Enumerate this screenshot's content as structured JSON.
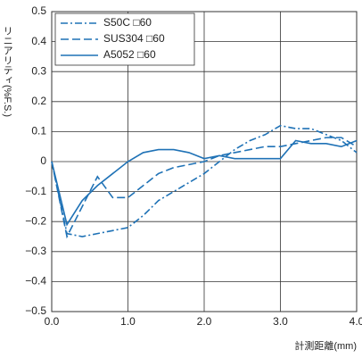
{
  "chart_data": {
    "type": "line",
    "y_label": "リニアリティ(%F.S.)",
    "x_label": "計測距離(mm)",
    "x": [
      0,
      0.2,
      0.4,
      0.6,
      0.8,
      1.0,
      1.2,
      1.4,
      1.6,
      1.8,
      2.0,
      2.2,
      2.4,
      2.6,
      2.8,
      3.0,
      3.2,
      3.4,
      3.6,
      3.8,
      4.0
    ],
    "series": [
      {
        "name": "S50C □60",
        "color": "#1f72b6",
        "dash": "dashdot",
        "values": [
          0,
          -0.24,
          -0.25,
          -0.24,
          -0.23,
          -0.22,
          -0.18,
          -0.13,
          -0.1,
          -0.07,
          -0.04,
          0.0,
          0.04,
          0.07,
          0.09,
          0.12,
          0.11,
          0.11,
          0.09,
          0.07,
          0.03
        ]
      },
      {
        "name": "SUS304 □60",
        "color": "#1f72b6",
        "dash": "dashed",
        "values": [
          0,
          -0.25,
          -0.15,
          -0.05,
          -0.12,
          -0.12,
          -0.08,
          -0.04,
          -0.02,
          -0.01,
          0.0,
          0.02,
          0.03,
          0.04,
          0.05,
          0.05,
          0.06,
          0.07,
          0.08,
          0.08,
          0.05
        ]
      },
      {
        "name": "A5052 □60",
        "color": "#1f72b6",
        "dash": "solid",
        "values": [
          0,
          -0.21,
          -0.13,
          -0.08,
          -0.04,
          0.0,
          0.03,
          0.04,
          0.04,
          0.03,
          0.01,
          0.02,
          0.01,
          0.01,
          0.01,
          0.01,
          0.07,
          0.06,
          0.06,
          0.05,
          0.07
        ]
      }
    ],
    "xlim": [
      0,
      4
    ],
    "xticks": [
      {
        "value": 0,
        "label": "0.0"
      },
      {
        "value": 1,
        "label": "1.0"
      },
      {
        "value": 2,
        "label": "2.0"
      },
      {
        "value": 3,
        "label": "3.0"
      },
      {
        "value": 4,
        "label": "4.0"
      }
    ],
    "ylim": [
      -0.5,
      0.5
    ],
    "yticks": [
      {
        "value": -0.5,
        "label": "−0.5"
      },
      {
        "value": -0.4,
        "label": "−0.4"
      },
      {
        "value": -0.3,
        "label": "−0.3"
      },
      {
        "value": -0.2,
        "label": "−0.2"
      },
      {
        "value": -0.1,
        "label": "−0.1"
      },
      0,
      0.1,
      0.2,
      0.3,
      0.4,
      0.5
    ],
    "grid": true,
    "legend": "upper-left"
  }
}
